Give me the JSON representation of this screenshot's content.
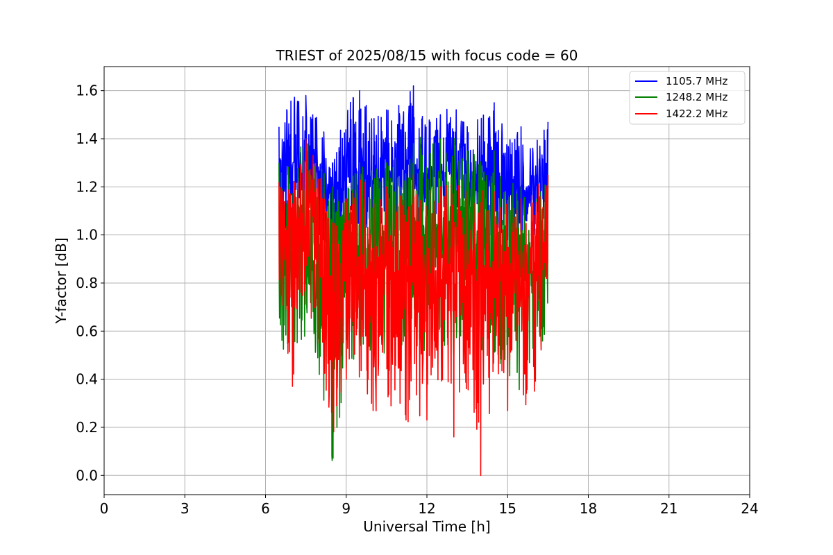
{
  "chart_data": {
    "type": "line",
    "title": "TRIEST of 2025/08/15 with focus code = 60",
    "xlabel": "Universal Time [h]",
    "ylabel": "Y-factor [dB]",
    "xlim": [
      0,
      24
    ],
    "ylim": [
      -0.08,
      1.7
    ],
    "xticks": [
      0,
      3,
      6,
      9,
      12,
      15,
      18,
      21,
      24
    ],
    "yticks": [
      0.0,
      0.2,
      0.4,
      0.6,
      0.8,
      1.0,
      1.2,
      1.4,
      1.6
    ],
    "ytick_labels": [
      "0.0",
      "0.2",
      "0.4",
      "0.6",
      "0.8",
      "1.0",
      "1.2",
      "1.4",
      "1.6"
    ],
    "grid": true,
    "legend_position": "top-right",
    "series": [
      {
        "name": "1105.7 MHz",
        "color": "#0000ff",
        "x_range": [
          6.5,
          16.5
        ],
        "envelope": {
          "x": [
            6.5,
            7.0,
            7.5,
            8.0,
            8.5,
            9.0,
            9.5,
            10.0,
            10.5,
            11.0,
            11.5,
            12.0,
            12.5,
            13.0,
            13.5,
            14.0,
            14.5,
            15.0,
            15.5,
            16.0,
            16.5
          ],
          "mean": [
            1.25,
            1.3,
            1.32,
            1.28,
            1.1,
            1.22,
            1.25,
            1.24,
            1.24,
            1.25,
            1.28,
            1.25,
            1.24,
            1.26,
            1.22,
            1.22,
            1.2,
            1.18,
            1.18,
            1.2,
            1.22
          ],
          "high": [
            1.45,
            1.58,
            1.58,
            1.5,
            1.3,
            1.55,
            1.6,
            1.52,
            1.52,
            1.55,
            1.62,
            1.5,
            1.5,
            1.6,
            1.45,
            1.5,
            1.55,
            1.4,
            1.45,
            1.42,
            1.47
          ],
          "low": [
            1.0,
            1.05,
            1.05,
            1.0,
            0.9,
            1.0,
            1.02,
            1.02,
            1.0,
            1.02,
            1.02,
            1.02,
            1.0,
            1.02,
            1.0,
            1.0,
            1.0,
            0.98,
            0.98,
            1.0,
            1.0
          ]
        }
      },
      {
        "name": "1248.2 MHz",
        "color": "#008000",
        "x_range": [
          6.5,
          16.5
        ],
        "envelope": {
          "x": [
            6.5,
            7.0,
            7.5,
            8.0,
            8.5,
            9.0,
            9.5,
            10.0,
            10.5,
            11.0,
            11.5,
            12.0,
            12.5,
            13.0,
            13.5,
            14.0,
            14.5,
            15.0,
            15.5,
            16.0,
            16.5
          ],
          "mean": [
            0.9,
            0.95,
            0.95,
            0.85,
            0.8,
            0.92,
            0.95,
            0.95,
            0.95,
            0.95,
            0.98,
            1.0,
            0.98,
            1.0,
            0.95,
            0.95,
            0.95,
            0.9,
            0.88,
            0.88,
            0.9
          ],
          "high": [
            1.3,
            1.35,
            1.4,
            1.3,
            1.2,
            1.25,
            1.3,
            1.3,
            1.3,
            1.35,
            1.38,
            1.45,
            1.4,
            1.42,
            1.35,
            1.35,
            1.35,
            1.25,
            1.2,
            1.2,
            1.25
          ],
          "low": [
            0.56,
            0.45,
            0.58,
            0.42,
            0.0,
            0.45,
            0.5,
            0.48,
            0.48,
            0.5,
            0.52,
            0.5,
            0.5,
            0.5,
            0.52,
            0.5,
            0.5,
            0.4,
            0.35,
            0.4,
            0.6
          ]
        }
      },
      {
        "name": "1422.2 MHz",
        "color": "#ff0000",
        "x_range": [
          6.5,
          16.5
        ],
        "envelope": {
          "x": [
            6.5,
            7.0,
            7.5,
            8.0,
            8.5,
            9.0,
            9.5,
            10.0,
            10.5,
            11.0,
            11.5,
            12.0,
            12.5,
            13.0,
            13.5,
            14.0,
            14.5,
            15.0,
            15.5,
            16.0,
            16.5
          ],
          "mean": [
            0.95,
            1.0,
            1.1,
            0.95,
            0.75,
            0.85,
            0.88,
            0.85,
            0.85,
            0.85,
            0.88,
            0.85,
            0.85,
            0.85,
            0.85,
            0.85,
            0.85,
            0.82,
            0.82,
            0.85,
            0.9
          ],
          "high": [
            1.22,
            1.32,
            1.4,
            1.28,
            1.05,
            1.22,
            1.25,
            1.22,
            1.2,
            1.22,
            1.25,
            1.22,
            1.2,
            1.22,
            1.18,
            1.2,
            1.18,
            1.15,
            1.15,
            1.2,
            1.25
          ],
          "low": [
            0.7,
            0.37,
            0.7,
            0.55,
            0.16,
            0.4,
            0.4,
            0.27,
            0.25,
            0.3,
            0.14,
            0.23,
            0.35,
            0.16,
            0.3,
            0.0,
            0.35,
            0.27,
            0.23,
            0.35,
            0.65
          ]
        }
      }
    ]
  }
}
